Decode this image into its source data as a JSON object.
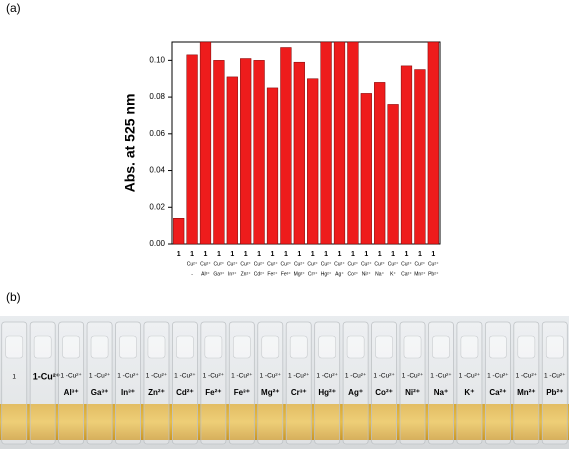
{
  "panel_labels": [
    "(a)",
    "(b)"
  ],
  "chart_data": {
    "type": "bar",
    "y_label": "Abs. at 525 nm",
    "color": "#ee1c1c",
    "categories": [
      [
        "1"
      ],
      [
        "1",
        "Cu²⁺",
        "-"
      ],
      [
        "1",
        "Cu²⁺",
        "Al³⁺"
      ],
      [
        "1",
        "Cu²⁺",
        "Ga³⁺"
      ],
      [
        "1",
        "Cu²⁺",
        "In³⁺"
      ],
      [
        "1",
        "Cu²⁺",
        "Zn²⁺"
      ],
      [
        "1",
        "Cu²⁺",
        "Cd²⁺"
      ],
      [
        "1",
        "Cu²⁺",
        "Fe²⁺"
      ],
      [
        "1",
        "Cu²⁺",
        "Fe³⁺"
      ],
      [
        "1",
        "Cu²⁺",
        "Mg²⁺"
      ],
      [
        "1",
        "Cu²⁺",
        "Cr³⁺"
      ],
      [
        "1",
        "Cu²⁺",
        "Hg²⁺"
      ],
      [
        "1",
        "Cu²⁺",
        "Ag⁺"
      ],
      [
        "1",
        "Cu²⁺",
        "Co²⁺"
      ],
      [
        "1",
        "Cu²⁺",
        "Ni²⁺"
      ],
      [
        "1",
        "Cu²⁺",
        "Na⁺"
      ],
      [
        "1",
        "Cu²⁺",
        "K⁺"
      ],
      [
        "1",
        "Cu²⁺",
        "Ca²⁺"
      ],
      [
        "1",
        "Cu²⁺",
        "Mn²⁺"
      ],
      [
        "1",
        "Cu²⁺",
        "Pb²⁺"
      ]
    ],
    "values": [
      0.014,
      0.103,
      0.11,
      0.1,
      0.091,
      0.101,
      0.1,
      0.085,
      0.107,
      0.099,
      0.09,
      0.11,
      0.11,
      0.11,
      0.082,
      0.088,
      0.076,
      0.097,
      0.095,
      0.11
    ],
    "ylim": [
      0,
      0.11
    ],
    "yticks": [
      {
        "value": 0,
        "label": "0.00"
      },
      {
        "value": 0.02,
        "label": "0.02"
      },
      {
        "value": 0.04,
        "label": "0.04"
      },
      {
        "value": 0.06,
        "label": "0.06"
      },
      {
        "value": 0.08,
        "label": "0.08"
      },
      {
        "value": 0.1,
        "label": "0.10"
      }
    ]
  },
  "photo_labels": [
    [
      "1"
    ],
    [
      "1-Cu²⁺"
    ],
    [
      "1 -Cu²⁺",
      "Al³⁺"
    ],
    [
      "1 -Cu²⁺",
      "Ga³⁺"
    ],
    [
      "1 -Cu²⁺",
      "In³⁺"
    ],
    [
      "1 -Cu²⁺",
      "Zn²⁺"
    ],
    [
      "1 -Cu²⁺",
      "Cd²⁺"
    ],
    [
      "1 -Cu²⁺",
      "Fe²⁺"
    ],
    [
      "1 -Cu²⁺",
      "Fe³⁺"
    ],
    [
      "1 -Cu²⁺",
      "Mg²⁺"
    ],
    [
      "1 -Cu²⁺",
      "Cr³⁺"
    ],
    [
      "1 -Cu²⁺",
      "Hg²⁺"
    ],
    [
      "1 -Cu²⁺",
      "Ag⁺"
    ],
    [
      "1 -Cu²⁺",
      "Co²⁺"
    ],
    [
      "1 -Cu²⁺",
      "Ni²⁺"
    ],
    [
      "1 -Cu²⁺",
      "Na⁺"
    ],
    [
      "1 -Cu²⁺",
      "K⁺"
    ],
    [
      "1 -Cu²⁺",
      "Ca²⁺"
    ],
    [
      "1 -Cu²⁺",
      "Mn²⁺"
    ],
    [
      "1 -Cu²⁺",
      "Pb²⁺"
    ]
  ]
}
